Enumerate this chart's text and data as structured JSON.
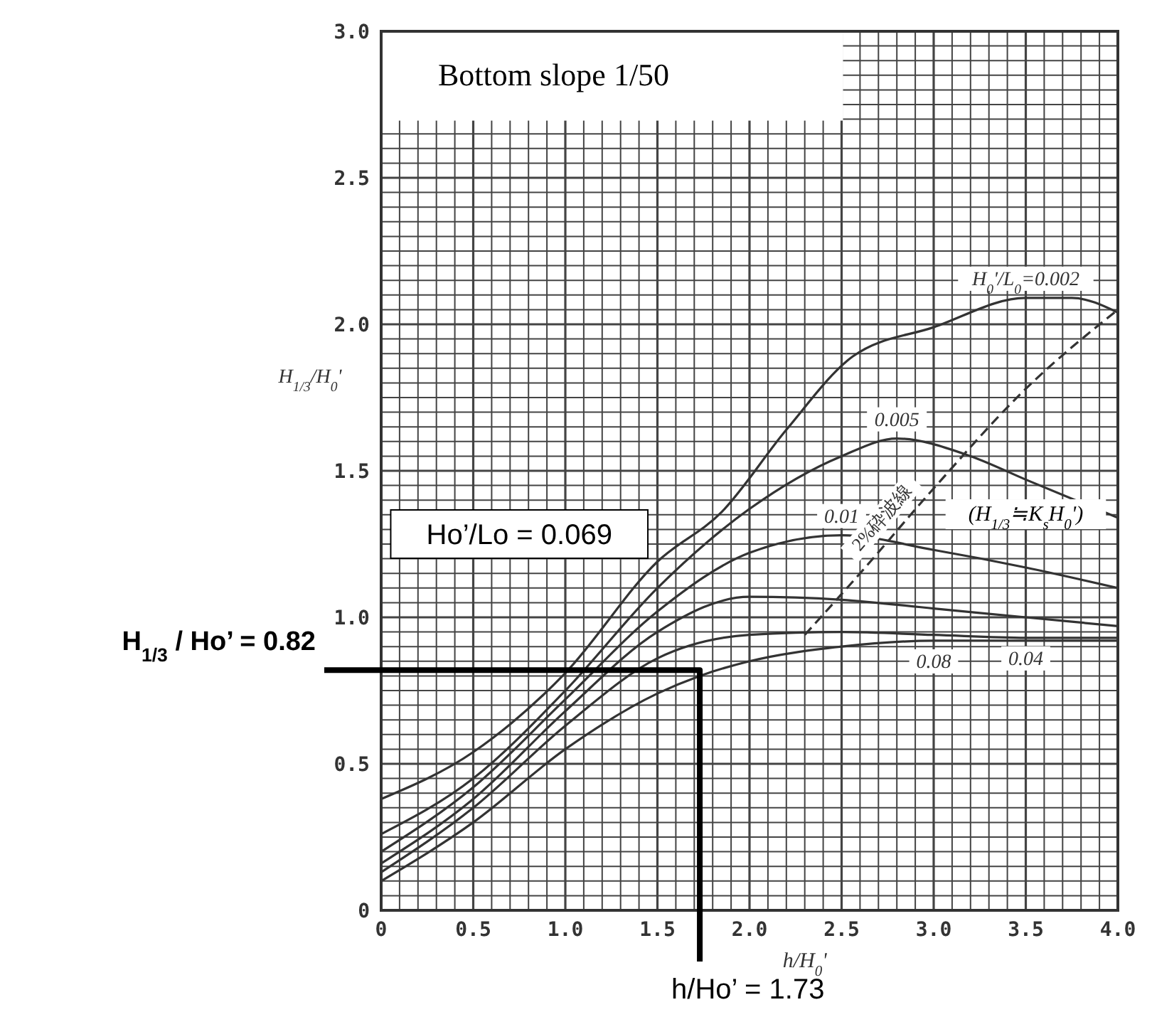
{
  "chart_data": {
    "type": "line",
    "title": "Bottom slope 1/50",
    "xlabel": "h/H$_{0}$'",
    "ylabel": "H$_{1/3}$/H$_{0}$'",
    "xlim": [
      0,
      4
    ],
    "ylim": [
      0,
      3
    ],
    "grid": true,
    "line_style": "solid",
    "marker": "none",
    "xticks": [
      0,
      {
        "value": 0.1,
        "label": null
      },
      {
        "value": 0.2,
        "label": null
      },
      {
        "value": 0.3,
        "label": null
      },
      {
        "value": 0.4,
        "label": null
      },
      0.5,
      {
        "value": 0.6,
        "label": null
      },
      {
        "value": 0.7,
        "label": null
      },
      {
        "value": 0.8,
        "label": null
      },
      {
        "value": 0.9,
        "label": null
      },
      {
        "value": 1,
        "label": "1.0"
      },
      {
        "value": 1.1,
        "label": null
      },
      {
        "value": 1.2,
        "label": null
      },
      {
        "value": 1.3,
        "label": null
      },
      {
        "value": 1.4,
        "label": null
      },
      1.5,
      {
        "value": 1.6,
        "label": null
      },
      {
        "value": 1.7,
        "label": null
      },
      {
        "value": 1.8,
        "label": null
      },
      {
        "value": 1.9,
        "label": null
      },
      {
        "value": 2,
        "label": "2.0"
      },
      {
        "value": 2.1,
        "label": null
      },
      {
        "value": 2.2,
        "label": null
      },
      {
        "value": 2.3,
        "label": null
      },
      {
        "value": 2.4,
        "label": null
      },
      2.5,
      {
        "value": 2.6,
        "label": null
      },
      {
        "value": 2.7,
        "label": null
      },
      {
        "value": 2.8,
        "label": null
      },
      {
        "value": 2.9,
        "label": null
      },
      {
        "value": 3,
        "label": "3.0"
      },
      {
        "value": 3.1,
        "label": null
      },
      {
        "value": 3.2,
        "label": null
      },
      {
        "value": 3.3,
        "label": null
      },
      {
        "value": 3.4,
        "label": null
      },
      3.5,
      {
        "value": 3.6,
        "label": null
      },
      {
        "value": 3.7,
        "label": null
      },
      {
        "value": 3.8,
        "label": null
      },
      {
        "value": 3.9,
        "label": null
      },
      {
        "value": 4,
        "label": "4.0"
      }
    ],
    "yticks": [
      0,
      {
        "value": 0.05,
        "label": null
      },
      {
        "value": 0.1,
        "label": null
      },
      {
        "value": 0.15,
        "label": null
      },
      {
        "value": 0.2,
        "label": null
      },
      {
        "value": 0.25,
        "label": null
      },
      {
        "value": 0.3,
        "label": null
      },
      {
        "value": 0.35,
        "label": null
      },
      {
        "value": 0.4,
        "label": null
      },
      {
        "value": 0.45,
        "label": null
      },
      0.5,
      {
        "value": 0.55,
        "label": null
      },
      {
        "value": 0.6,
        "label": null
      },
      {
        "value": 0.65,
        "label": null
      },
      {
        "value": 0.7,
        "label": null
      },
      {
        "value": 0.75,
        "label": null
      },
      {
        "value": 0.8,
        "label": null
      },
      {
        "value": 0.85,
        "label": null
      },
      {
        "value": 0.9,
        "label": null
      },
      {
        "value": 0.95,
        "label": null
      },
      {
        "value": 1,
        "label": "1.0"
      },
      {
        "value": 1.05,
        "label": null
      },
      {
        "value": 1.1,
        "label": null
      },
      {
        "value": 1.15,
        "label": null
      },
      {
        "value": 1.2,
        "label": null
      },
      {
        "value": 1.25,
        "label": null
      },
      {
        "value": 1.3,
        "label": null
      },
      {
        "value": 1.35,
        "label": null
      },
      {
        "value": 1.4,
        "label": null
      },
      {
        "value": 1.45,
        "label": null
      },
      1.5,
      {
        "value": 1.55,
        "label": null
      },
      {
        "value": 1.6,
        "label": null
      },
      {
        "value": 1.65,
        "label": null
      },
      {
        "value": 1.7,
        "label": null
      },
      {
        "value": 1.75,
        "label": null
      },
      {
        "value": 1.8,
        "label": null
      },
      {
        "value": 1.85,
        "label": null
      },
      {
        "value": 1.9,
        "label": null
      },
      {
        "value": 1.95,
        "label": null
      },
      {
        "value": 2,
        "label": "2.0"
      },
      {
        "value": 2.05,
        "label": null
      },
      {
        "value": 2.1,
        "label": null
      },
      {
        "value": 2.15,
        "label": null
      },
      {
        "value": 2.2,
        "label": null
      },
      {
        "value": 2.25,
        "label": null
      },
      {
        "value": 2.3,
        "label": null
      },
      {
        "value": 2.35,
        "label": null
      },
      {
        "value": 2.4,
        "label": null
      },
      {
        "value": 2.45,
        "label": null
      },
      2.5,
      {
        "value": 2.55,
        "label": null
      },
      {
        "value": 2.6,
        "label": null
      },
      {
        "value": 2.65,
        "label": null
      },
      {
        "value": 2.7,
        "label": null
      },
      {
        "value": 2.75,
        "label": null
      },
      {
        "value": 2.8,
        "label": null
      },
      {
        "value": 2.85,
        "label": null
      },
      {
        "value": 2.9,
        "label": null
      },
      {
        "value": 2.95,
        "label": null
      },
      {
        "value": 3,
        "label": "3.0"
      }
    ],
    "x": [
      0,
      0.5,
      1,
      1.5,
      2,
      2.5,
      3,
      3.5,
      4
    ],
    "series": [
      {
        "name": "H$_{0}$'/L$_{0}$=0.002",
        "color": "#333333",
        "x": [
          0,
          0.5,
          1,
          1.5,
          1.85,
          2.2,
          2.56,
          3,
          3.5,
          3.75,
          4
        ],
        "values": [
          0.38,
          0.54,
          0.81,
          1.19,
          1.36,
          1.64,
          1.89,
          1.99,
          2.09,
          2.09,
          2.04
        ]
      },
      {
        "name": "0.005",
        "color": "#333333",
        "x": [
          0,
          0.5,
          1,
          1.5,
          2,
          2.5,
          2.8,
          3.2,
          3.5,
          4
        ],
        "values": [
          0.26,
          0.45,
          0.75,
          1.1,
          1.37,
          1.55,
          1.61,
          1.55,
          1.47,
          1.34
        ]
      },
      {
        "name": "0.01",
        "color": "#333333",
        "values": [
          0.2,
          0.42,
          0.72,
          1.02,
          1.22,
          1.28,
          1.23,
          1.17,
          1.1
        ]
      },
      {
        "color": "#333333",
        "values": [
          0.16,
          0.38,
          0.68,
          0.95,
          1.07,
          1.06,
          1.03,
          1,
          0.97
        ]
      },
      {
        "name": "0.04",
        "color": "#333333",
        "values": [
          0.13,
          0.35,
          0.63,
          0.86,
          0.94,
          0.95,
          0.94,
          0.93,
          0.93
        ]
      },
      {
        "name": "0.08",
        "color": "#333333",
        "x": [
          0,
          0.5,
          1,
          1.5,
          1.73,
          2,
          2.5,
          3,
          3.5,
          4
        ],
        "values": [
          0.1,
          0.3,
          0.55,
          0.74,
          0.8,
          0.85,
          0.9,
          0.92,
          0.92,
          0.92
        ]
      },
      {
        "name": "2%砕波線",
        "color": "#333333",
        "line_style": "dashed",
        "x": [
          2.3,
          2.6,
          3,
          3.5,
          4
        ],
        "values": [
          0.94,
          1.15,
          1.44,
          1.78,
          2.05
        ]
      },
      {
        "color": "#000000",
        "x": [
          0,
          1.73,
          1.73
        ],
        "values": [
          0.82,
          0.82,
          0
        ]
      }
    ],
    "annotations": [
      "(H$_{1/3}$≒K$_{s}$H$_{0}$')",
      "Ho’/Lo = 0.069",
      "H$_{1/3}$ / Ho’ = 0.82",
      "h/Ho’ = 1.73"
    ]
  }
}
